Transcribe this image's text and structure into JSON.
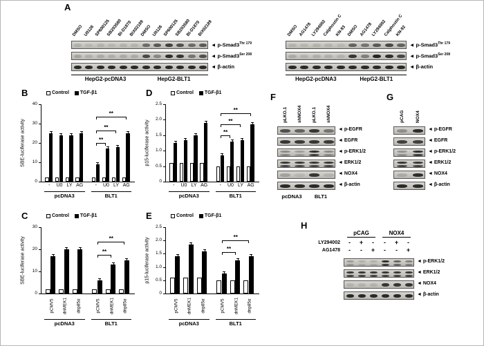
{
  "panel_letters": {
    "A": "A",
    "B": "B",
    "C": "C",
    "D": "D",
    "E": "E",
    "F": "F",
    "G": "G",
    "H": "H"
  },
  "legend": {
    "control": "Control",
    "tgf": "TGF-β1"
  },
  "colors": {
    "control_fill": "#ffffff",
    "tgf_fill": "#000000",
    "band": "#131313"
  },
  "charts": {
    "B": {
      "type": "bar",
      "ylabel": "SBE-luciferase activity",
      "ymax": 40,
      "yticks": [
        {
          "v": 0,
          "t": "0"
        },
        {
          "v": 10,
          "t": "10"
        },
        {
          "v": 20,
          "t": "20"
        },
        {
          "v": 30,
          "t": "30"
        },
        {
          "v": 40,
          "t": "40"
        }
      ],
      "cats": [
        "-",
        "U0",
        "LY",
        "AG",
        "-",
        "U0",
        "LY",
        "AG"
      ],
      "groups": [
        "pcDNA3",
        "BLT1"
      ],
      "series": [
        {
          "name": "Control",
          "values": [
            2,
            2,
            2,
            2,
            2,
            2,
            2,
            2
          ]
        },
        {
          "name": "TGF-β1",
          "values": [
            25,
            24,
            24,
            25,
            9,
            17,
            18,
            25
          ]
        }
      ],
      "sig": [
        {
          "a": 4,
          "b": 5,
          "h": 0.5,
          "label": "**"
        },
        {
          "a": 4,
          "b": 6,
          "h": 0.66,
          "label": "**"
        },
        {
          "a": 4,
          "b": 7,
          "h": 0.84,
          "label": "**"
        }
      ]
    },
    "D": {
      "type": "bar",
      "ylabel": "p15-luciferase activity",
      "ymax": 2.5,
      "yticks": [
        {
          "v": 0,
          "t": "0"
        },
        {
          "v": 0.5,
          "t": "0.5"
        },
        {
          "v": 1.0,
          "t": "1.0"
        },
        {
          "v": 1.5,
          "t": "1.5"
        },
        {
          "v": 2.0,
          "t": "2.0"
        },
        {
          "v": 2.5,
          "t": "2.5"
        }
      ],
      "cats": [
        "-",
        "U0",
        "LY",
        "AG",
        "-",
        "U0",
        "LY",
        "AG"
      ],
      "groups": [
        "pcDNA3",
        "BLT1"
      ],
      "series": [
        {
          "name": "Control",
          "values": [
            0.6,
            0.6,
            0.6,
            0.6,
            0.5,
            0.5,
            0.5,
            0.5
          ]
        },
        {
          "name": "TGF-β1",
          "values": [
            1.25,
            1.35,
            1.5,
            1.9,
            0.85,
            1.3,
            1.35,
            1.85
          ]
        }
      ],
      "sig": [
        {
          "a": 4,
          "b": 5,
          "h": 0.6,
          "label": "**"
        },
        {
          "a": 4,
          "b": 6,
          "h": 0.74,
          "label": "**"
        },
        {
          "a": 4,
          "b": 7,
          "h": 0.88,
          "label": "**"
        }
      ]
    },
    "C": {
      "type": "bar",
      "ylabel": "SBE-luciferase activity",
      "ymax": 30,
      "yticks": [
        {
          "v": 0,
          "t": "0"
        },
        {
          "v": 10,
          "t": "10"
        },
        {
          "v": 20,
          "t": "20"
        },
        {
          "v": 30,
          "t": "30"
        }
      ],
      "cats": [
        "pCMV5",
        "dnMEK1",
        "dnp85α",
        "pCMV5",
        "dnMEK1",
        "dnp85α"
      ],
      "groups": [
        "pcDNA3",
        "BLT1"
      ],
      "series": [
        {
          "name": "Control",
          "values": [
            2,
            2,
            2,
            2,
            2,
            2
          ]
        },
        {
          "name": "TGF-β1",
          "values": [
            17,
            20,
            20,
            6,
            13,
            15
          ]
        }
      ],
      "sig": [
        {
          "a": 3,
          "b": 4,
          "h": 0.58,
          "label": "**"
        },
        {
          "a": 3,
          "b": 5,
          "h": 0.78,
          "label": "**"
        }
      ]
    },
    "E": {
      "type": "bar",
      "ylabel": "p15-luciferase activity",
      "ymax": 2.5,
      "yticks": [
        {
          "v": 0,
          "t": "0"
        },
        {
          "v": 0.5,
          "t": "0.5"
        },
        {
          "v": 1.0,
          "t": "1.0"
        },
        {
          "v": 1.5,
          "t": "1.5"
        },
        {
          "v": 2.0,
          "t": "2.0"
        },
        {
          "v": 2.5,
          "t": "2.5"
        }
      ],
      "cats": [
        "pCMV5",
        "dnMEK1",
        "dnp85α",
        "pCMV5",
        "dnMEK1",
        "dnp85α"
      ],
      "groups": [
        "pcDNA3",
        "BLT1"
      ],
      "series": [
        {
          "name": "Control",
          "values": [
            0.6,
            0.6,
            0.6,
            0.5,
            0.5,
            0.5
          ]
        },
        {
          "name": "TGF-β1",
          "values": [
            1.4,
            1.85,
            1.6,
            0.75,
            1.25,
            1.4
          ]
        }
      ],
      "sig": [
        {
          "a": 3,
          "b": 4,
          "h": 0.62,
          "label": "**"
        },
        {
          "a": 3,
          "b": 5,
          "h": 0.8,
          "label": "**"
        }
      ]
    }
  },
  "blots": {
    "A_left": {
      "lanes": [
        "DMSO",
        "U0126",
        "SP600125",
        "SB203580",
        "BI-D1870",
        "BIX02189",
        "DMSO",
        "U0126",
        "SP600125",
        "SB203580",
        "BI-D1870",
        "BIX02189"
      ],
      "rows": [
        {
          "label": "p-Smad3",
          "sup": "Thr 179",
          "double": false,
          "intensities": [
            0.12,
            0.08,
            0.1,
            0.08,
            0.1,
            0.1,
            0.5,
            0.6,
            0.75,
            0.65,
            0.5,
            0.6
          ]
        },
        {
          "label": "p-Smad3",
          "sup": "Ser 208",
          "double": false,
          "intensities": [
            0.18,
            0.12,
            0.15,
            0.12,
            0.15,
            0.15,
            0.7,
            0.35,
            0.85,
            0.8,
            0.45,
            0.65
          ]
        },
        {
          "label": "β-actin",
          "sup": "",
          "double": false,
          "intensities": [
            0.88,
            0.88,
            0.88,
            0.88,
            0.88,
            0.88,
            0.88,
            0.88,
            0.88,
            0.88,
            0.88,
            0.88
          ]
        }
      ],
      "groups": [
        {
          "label": "HepG2-pcDNA3",
          "span": 6
        },
        {
          "label": "HepG2-BLT1",
          "span": 6
        }
      ]
    },
    "A_right": {
      "lanes": [
        "DMSO",
        "AG1478",
        "LY294002",
        "Calphostin C",
        "KN-93",
        "DMSO",
        "AG1478",
        "LY294002",
        "Calphostin C",
        "KN-92"
      ],
      "rows": [
        {
          "label": "p-Smad3",
          "sup": "Thr 179",
          "double": false,
          "intensities": [
            0.1,
            0.08,
            0.1,
            0.1,
            0.08,
            0.55,
            0.45,
            0.6,
            0.7,
            0.55
          ]
        },
        {
          "label": "p-Smad3",
          "sup": "Ser 208",
          "double": false,
          "intensities": [
            0.15,
            0.1,
            0.12,
            0.12,
            0.1,
            0.8,
            0.4,
            0.9,
            0.85,
            0.7
          ]
        },
        {
          "label": "β-actin",
          "sup": "",
          "double": false,
          "intensities": [
            0.88,
            0.88,
            0.88,
            0.88,
            0.88,
            0.88,
            0.88,
            0.88,
            0.88,
            0.88
          ]
        }
      ],
      "groups": [
        {
          "label": "HepG2-pcDNA3",
          "span": 5
        },
        {
          "label": "HepG2-BLT1",
          "span": 5
        }
      ]
    },
    "F": {
      "lanes": [
        "pLKO.1",
        "shNOX4",
        "pLKO.1",
        "shNOX4"
      ],
      "rows": [
        {
          "label": "p-EGFR",
          "sup": "",
          "double": false,
          "intensities": [
            0.65,
            0.55,
            0.8,
            0.45
          ]
        },
        {
          "label": "EGFR",
          "sup": "",
          "double": false,
          "intensities": [
            0.8,
            0.78,
            0.8,
            0.78
          ]
        },
        {
          "label": "p-ERK1/2",
          "sup": "",
          "double": true,
          "intensities": [
            0.35,
            0.25,
            0.85,
            0.35
          ]
        },
        {
          "label": "ERK1/2",
          "sup": "",
          "double": true,
          "intensities": [
            0.8,
            0.8,
            0.8,
            0.8
          ]
        },
        {
          "label": "NOX4",
          "sup": "",
          "double": false,
          "intensities": [
            0.2,
            0.08,
            0.8,
            0.1
          ]
        },
        {
          "label": "β-actin",
          "sup": "",
          "double": false,
          "intensities": [
            0.88,
            0.88,
            0.88,
            0.88
          ]
        }
      ],
      "bottom_labels": [
        {
          "label": "pcDNA3",
          "span": 2
        },
        {
          "label": "BLT1",
          "span": 2
        }
      ]
    },
    "G": {
      "lanes": [
        "pCAG",
        "NOX4"
      ],
      "rows": [
        {
          "label": "p-EGFR",
          "sup": "",
          "double": false,
          "intensities": [
            0.3,
            0.85
          ]
        },
        {
          "label": "EGFR",
          "sup": "",
          "double": false,
          "intensities": [
            0.75,
            0.75
          ]
        },
        {
          "label": "p-ERK1/2",
          "sup": "",
          "double": true,
          "intensities": [
            0.3,
            0.85
          ]
        },
        {
          "label": "ERK1/2",
          "sup": "",
          "double": true,
          "intensities": [
            0.8,
            0.8
          ]
        },
        {
          "label": "NOX4",
          "sup": "",
          "double": false,
          "intensities": [
            0.15,
            0.85
          ]
        },
        {
          "label": "β-actin",
          "sup": "",
          "double": false,
          "intensities": [
            0.88,
            0.88
          ]
        }
      ],
      "bottom_labels": []
    },
    "H": {
      "top_groups": [
        {
          "label": "pCAG",
          "span": 3
        },
        {
          "label": "NOX4",
          "span": 3
        }
      ],
      "sign_rows": [
        {
          "label": "LY294002",
          "signs": [
            "-",
            "+",
            "-",
            "-",
            "+",
            "-"
          ]
        },
        {
          "label": "AG1478",
          "signs": [
            "-",
            "-",
            "+",
            "-",
            "-",
            "+"
          ]
        }
      ],
      "rows": [
        {
          "label": "p-ERK1/2",
          "sup": "",
          "double": true,
          "intensities": [
            0.25,
            0.15,
            0.15,
            0.85,
            0.55,
            0.4
          ]
        },
        {
          "label": "ERK1/2",
          "sup": "",
          "double": true,
          "intensities": [
            0.8,
            0.8,
            0.8,
            0.8,
            0.8,
            0.8
          ]
        },
        {
          "label": "NOX4",
          "sup": "",
          "double": false,
          "intensities": [
            0.1,
            0.1,
            0.1,
            0.8,
            0.8,
            0.8
          ]
        },
        {
          "label": "β-actin",
          "sup": "",
          "double": false,
          "intensities": [
            0.88,
            0.88,
            0.88,
            0.88,
            0.88,
            0.88
          ]
        }
      ]
    }
  }
}
